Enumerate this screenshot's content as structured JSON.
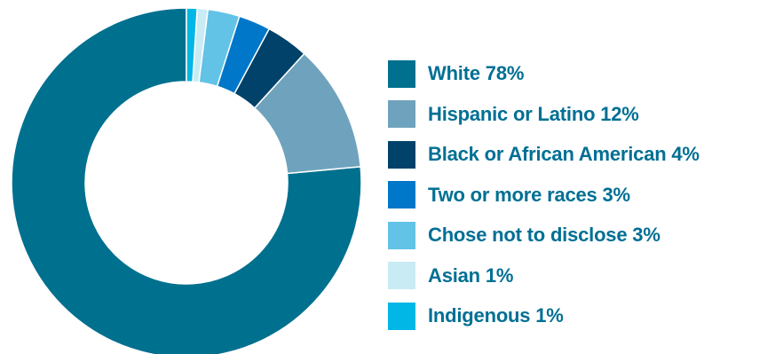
{
  "chart_data": {
    "type": "pie",
    "variant": "donut",
    "title": "",
    "legend_position": "right",
    "series": [
      {
        "name": "White",
        "label": "White 78%",
        "value": 78,
        "color": "#00708f"
      },
      {
        "name": "Hispanic or Latino",
        "label": "Hispanic or Latino 12%",
        "value": 12,
        "color": "#6fa3bd"
      },
      {
        "name": "Black or African American",
        "label": "Black or African American 4%",
        "value": 4,
        "color": "#00426a"
      },
      {
        "name": "Two or more races",
        "label": "Two or more races 3%",
        "value": 3,
        "color": "#0077c8"
      },
      {
        "name": "Chose not to disclose",
        "label": "Chose not to disclose 3%",
        "value": 3,
        "color": "#62c3e6"
      },
      {
        "name": "Asian",
        "label": "Asian 1%",
        "value": 1,
        "color": "#c8ebf4"
      },
      {
        "name": "Indigenous",
        "label": "Indigenous 1%",
        "value": 1,
        "color": "#00b7e5"
      }
    ]
  }
}
